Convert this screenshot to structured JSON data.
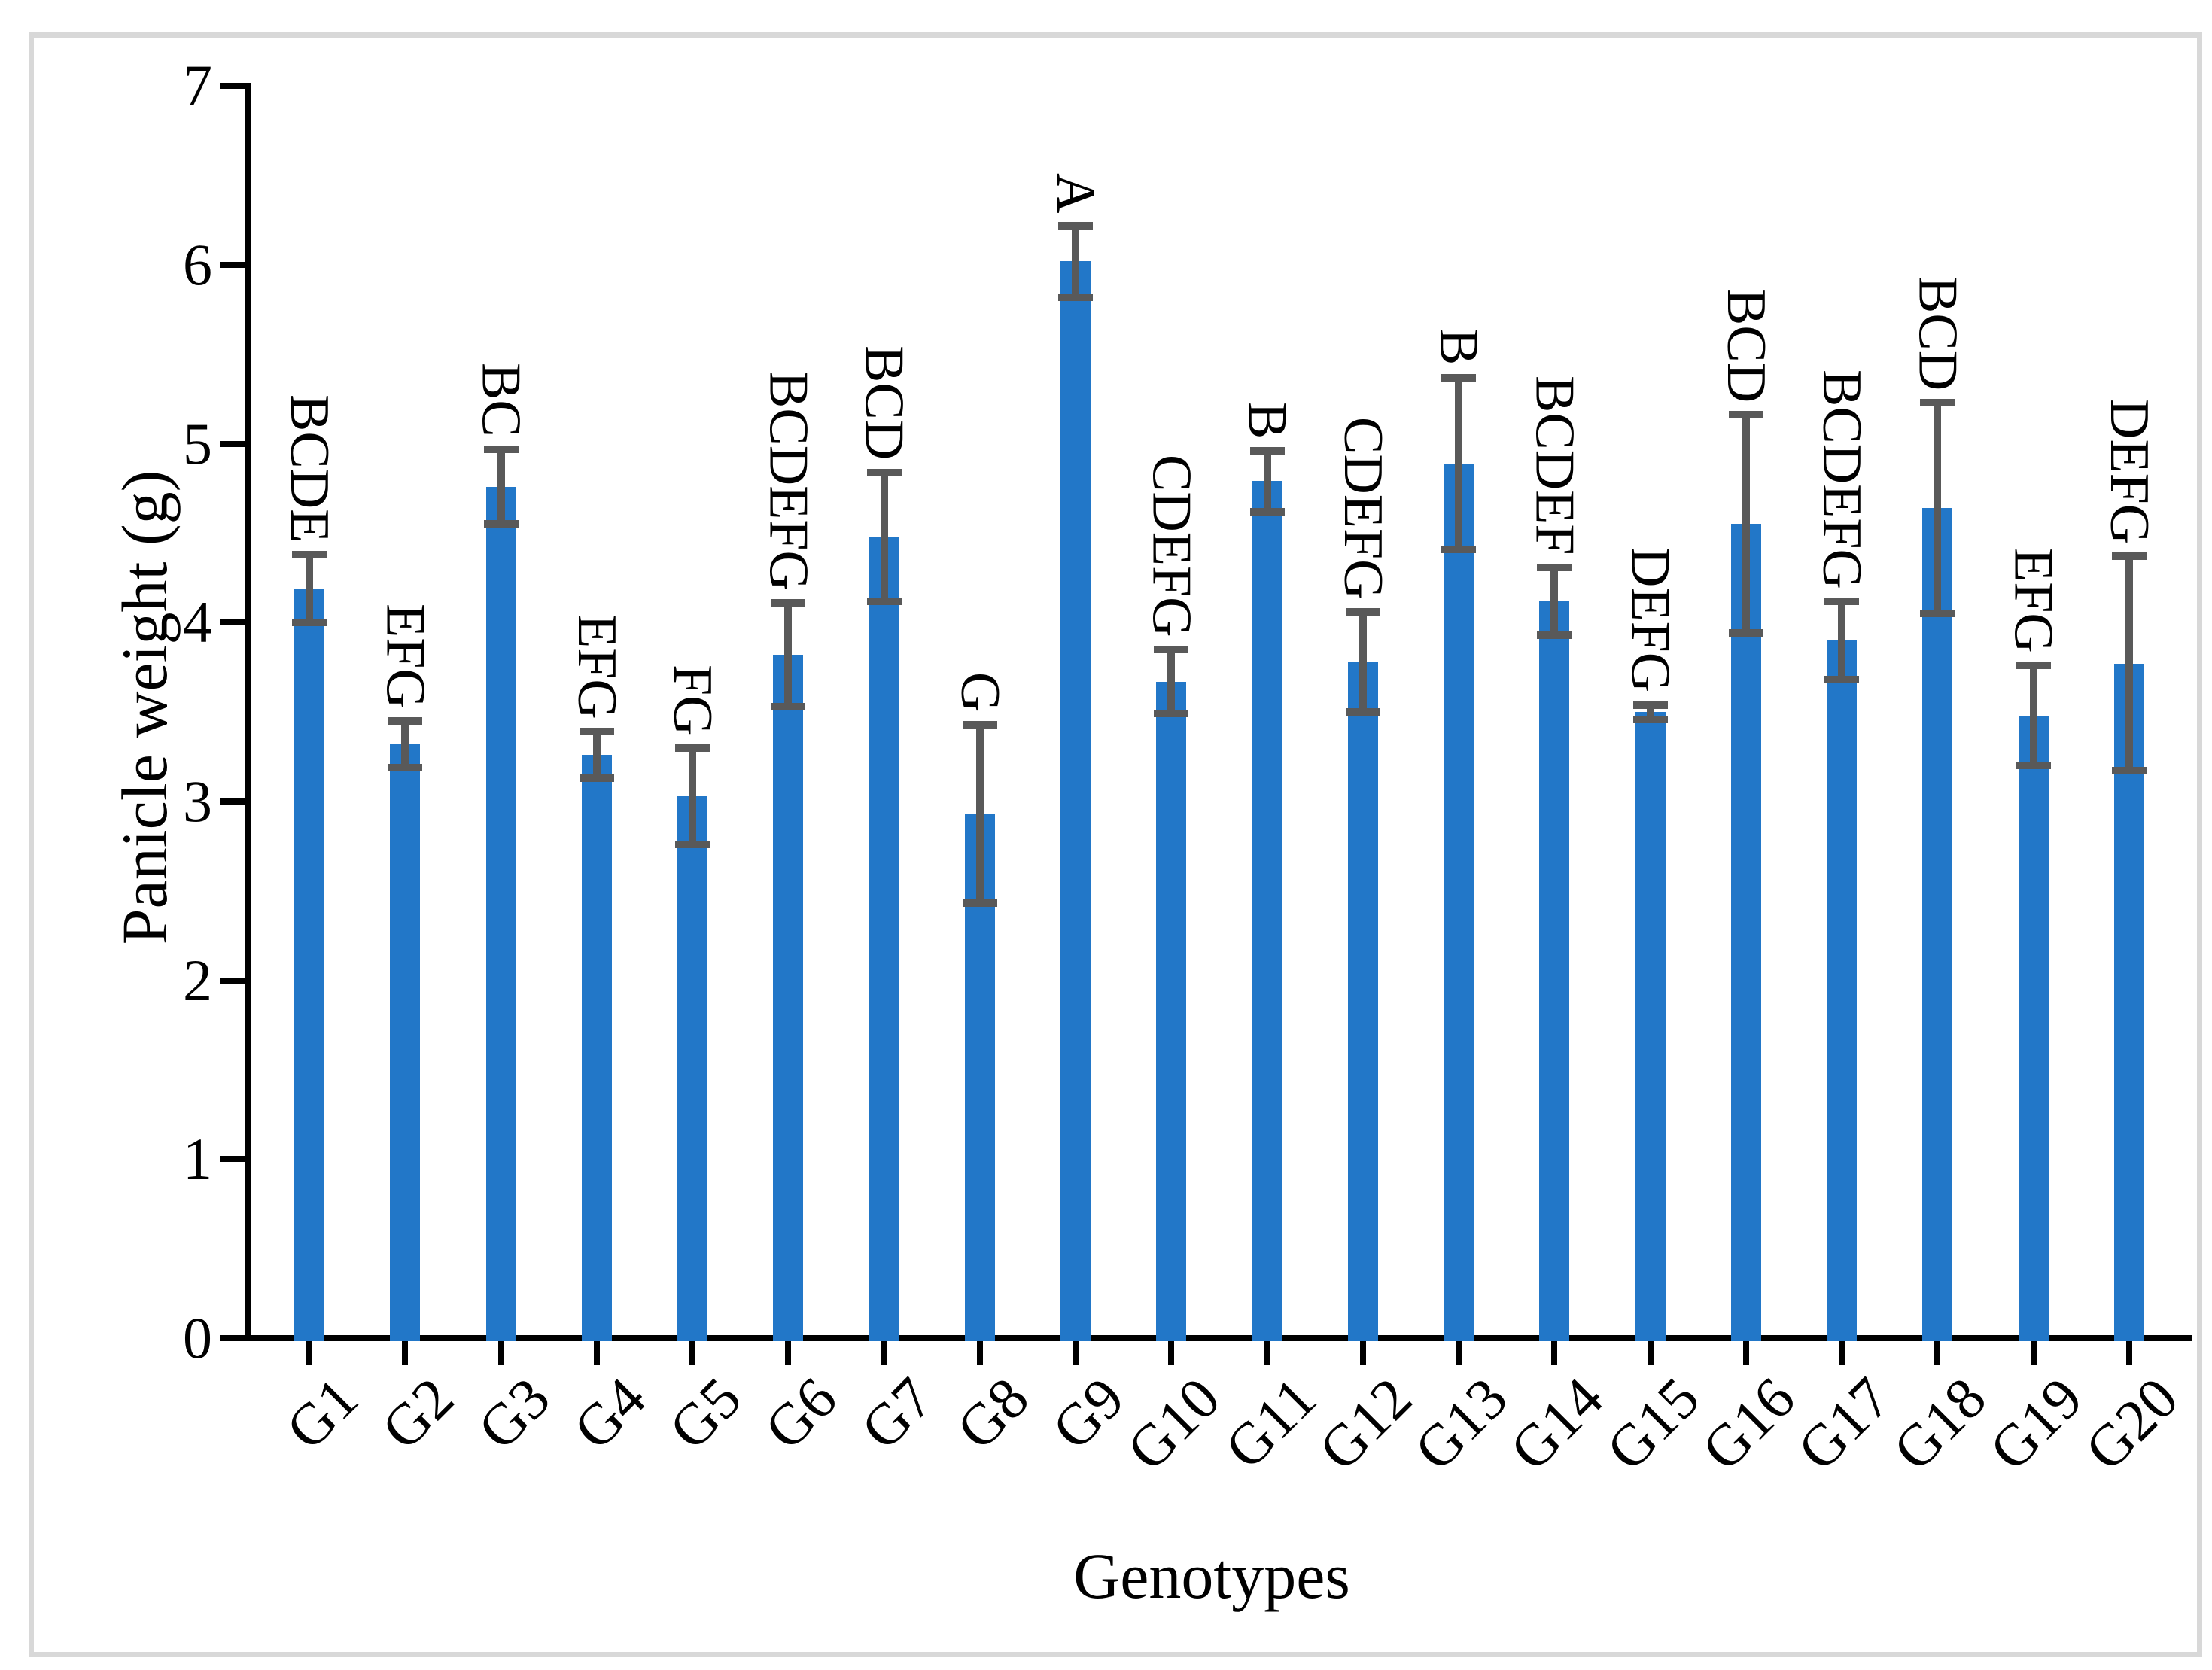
{
  "chart_data": {
    "type": "bar",
    "title": "",
    "xlabel": "Genotypes",
    "ylabel": "Panicle weight (g)",
    "ylim": [
      0,
      7
    ],
    "yticks": [
      0,
      1,
      2,
      3,
      4,
      5,
      6,
      7
    ],
    "grid": "off",
    "legend": "none",
    "categories": [
      "G1",
      "G2",
      "G3",
      "G4",
      "G5",
      "G6",
      "G7",
      "G8",
      "G9",
      "G10",
      "G11",
      "G12",
      "G13",
      "G14",
      "G15",
      "G16",
      "G17",
      "G18",
      "G19",
      "G20"
    ],
    "values": [
      4.19,
      3.32,
      4.76,
      3.26,
      3.03,
      3.82,
      4.48,
      2.93,
      6.02,
      3.67,
      4.79,
      3.78,
      4.89,
      4.12,
      3.5,
      4.55,
      3.9,
      4.64,
      3.48,
      3.77
    ],
    "error_bars": [
      0.19,
      0.13,
      0.21,
      0.13,
      0.27,
      0.29,
      0.36,
      0.5,
      0.2,
      0.18,
      0.17,
      0.28,
      0.48,
      0.19,
      0.04,
      0.61,
      0.22,
      0.59,
      0.28,
      0.6
    ],
    "sig_letters": [
      "BCDE",
      "EFG",
      "BC",
      "EFG",
      "FG",
      "BCDEFG",
      "BCD",
      "G",
      "A",
      "CDEFG",
      "B",
      "CDEFG",
      "B",
      "BCDEF",
      "DEFG",
      "BCD",
      "BCDEFG",
      "BCD",
      "EFG",
      "DEFG"
    ],
    "bar_color": "#2277c8",
    "error_bar_color": "#595959",
    "axis_color": "#000000",
    "frame_color": "#d8d8d8"
  }
}
